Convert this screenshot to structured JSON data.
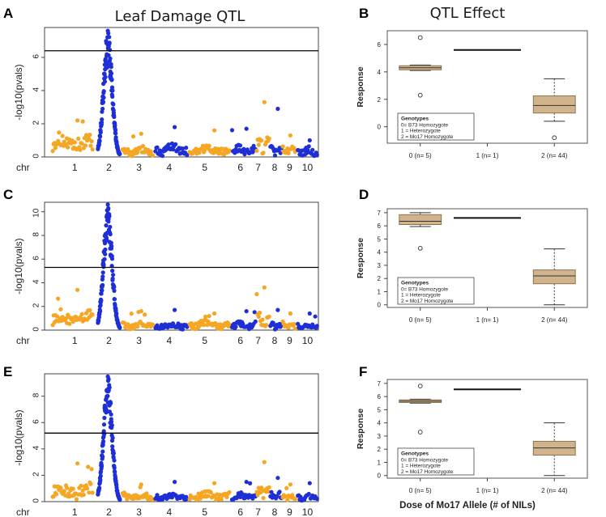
{
  "figure": {
    "left_title": "Leaf Damage QTL",
    "right_title": "QTL Effect",
    "bottom_xlabel": "Dose of Mo17 Allele (# of NILs)",
    "colors": {
      "orange": "#f5a623",
      "blue": "#1f2fd6",
      "box_fill": "#d2b48c",
      "box_edge": "#8c7452"
    }
  },
  "chart_data": [
    {
      "panel": "A",
      "type": "scatter",
      "subtype": "manhattan",
      "ylabel": "-log10(pvals)",
      "xlabel_prefix": "chr",
      "chromosomes": [
        "1",
        "2",
        "3",
        "4",
        "5",
        "6",
        "7",
        "8",
        "9",
        "10"
      ],
      "yticks": [
        0,
        2,
        4,
        6
      ],
      "ylim": [
        0,
        7.8
      ],
      "threshold": 6.4,
      "profile": {
        "base": [
          1.0,
          0.6,
          0.45,
          0.55,
          0.5,
          0.5,
          0.9,
          0.5,
          0.5,
          0.45
        ],
        "hi": [
          2.2,
          7.6,
          1.4,
          1.8,
          1.6,
          1.7,
          3.3,
          2.9,
          1.3,
          1.0
        ],
        "peak_chr": "2",
        "peak_value": 7.6
      }
    },
    {
      "panel": "B",
      "type": "box",
      "ylabel": "Response",
      "categories": [
        "0 (n= 5)",
        "1 (n= 1)",
        "2 (n= 44)"
      ],
      "yticks": [
        0,
        2,
        4,
        6
      ],
      "ylim": [
        -1.2,
        7.0
      ],
      "boxes": [
        {
          "q1": 4.15,
          "median": 4.3,
          "q3": 4.45,
          "wlo": 4.1,
          "whi": 4.5,
          "outliers": [
            6.5,
            2.3
          ]
        },
        {
          "single": 5.6
        },
        {
          "q1": 1.0,
          "median": 1.55,
          "q3": 2.25,
          "wlo": 0.4,
          "whi": 3.5,
          "outliers": [
            -0.8
          ]
        }
      ],
      "legend": {
        "title": "Genotypes",
        "items": [
          "0= B73 Homozygote",
          "1 = Heterozygote",
          "2 = Mo17 Homozygote"
        ],
        "position": "bottom-left"
      }
    },
    {
      "panel": "C",
      "type": "scatter",
      "subtype": "manhattan",
      "ylabel": "-log10(pvals)",
      "xlabel_prefix": "chr",
      "chromosomes": [
        "1",
        "2",
        "3",
        "4",
        "5",
        "6",
        "7",
        "8",
        "9",
        "10"
      ],
      "yticks": [
        0,
        2,
        4,
        6,
        8,
        10
      ],
      "ylim": [
        0,
        10.8
      ],
      "threshold": 5.3,
      "profile": {
        "base": [
          1.2,
          0.7,
          0.5,
          0.45,
          0.6,
          0.5,
          1.0,
          0.5,
          0.5,
          0.4
        ],
        "hi": [
          3.4,
          10.6,
          1.6,
          1.7,
          1.4,
          1.6,
          3.6,
          1.7,
          1.4,
          1.4
        ],
        "peak_chr": "2",
        "peak_value": 10.6
      }
    },
    {
      "panel": "D",
      "type": "box",
      "ylabel": "Response",
      "categories": [
        "0 (n= 5)",
        "1 (n= 1)",
        "2 (n= 44)"
      ],
      "yticks": [
        0,
        1,
        2,
        3,
        4,
        5,
        6,
        7
      ],
      "ylim": [
        -0.2,
        7.3
      ],
      "boxes": [
        {
          "q1": 6.1,
          "median": 6.35,
          "q3": 6.85,
          "wlo": 5.95,
          "whi": 7.0,
          "outliers": [
            4.3
          ]
        },
        {
          "single": 6.6
        },
        {
          "q1": 1.6,
          "median": 2.2,
          "q3": 2.65,
          "wlo": 0.0,
          "whi": 4.25,
          "outliers": []
        }
      ],
      "legend": {
        "title": "Genotypes",
        "items": [
          "0= B73 Homozygote",
          "1 = Heterozygote",
          "2 = Mo17 Homozygote"
        ],
        "position": "bottom-left"
      }
    },
    {
      "panel": "E",
      "type": "scatter",
      "subtype": "manhattan",
      "ylabel": "-log10(pvals)",
      "xlabel_prefix": "chr",
      "chromosomes": [
        "1",
        "2",
        "3",
        "4",
        "5",
        "6",
        "7",
        "8",
        "9",
        "10"
      ],
      "yticks": [
        0,
        2,
        4,
        6,
        8
      ],
      "ylim": [
        0,
        9.7
      ],
      "threshold": 5.2,
      "profile": {
        "base": [
          1.0,
          0.6,
          0.5,
          0.45,
          0.55,
          0.5,
          0.9,
          0.5,
          0.45,
          0.4
        ],
        "hi": [
          2.9,
          9.5,
          1.3,
          1.5,
          1.4,
          1.5,
          3.0,
          1.8,
          1.3,
          1.4
        ],
        "peak_chr": "2",
        "peak_value": 9.5
      }
    },
    {
      "panel": "F",
      "type": "box",
      "ylabel": "Response",
      "categories": [
        "0 (n= 5)",
        "1 (n= 1)",
        "2 (n= 44)"
      ],
      "yticks": [
        0,
        1,
        2,
        3,
        4,
        5,
        6,
        7
      ],
      "ylim": [
        -0.2,
        7.3
      ],
      "boxes": [
        {
          "q1": 5.55,
          "median": 5.65,
          "q3": 5.75,
          "wlo": 5.5,
          "whi": 5.8,
          "outliers": [
            6.8,
            3.3
          ]
        },
        {
          "single": 6.55
        },
        {
          "q1": 1.55,
          "median": 2.1,
          "q3": 2.6,
          "wlo": 0.0,
          "whi": 4.0,
          "outliers": []
        }
      ],
      "legend": {
        "title": "Genotypes",
        "items": [
          "0= B73 Homozygote",
          "1 = Heterozygote",
          "2 = Mo17 Homozygote"
        ],
        "position": "bottom-left"
      }
    }
  ]
}
